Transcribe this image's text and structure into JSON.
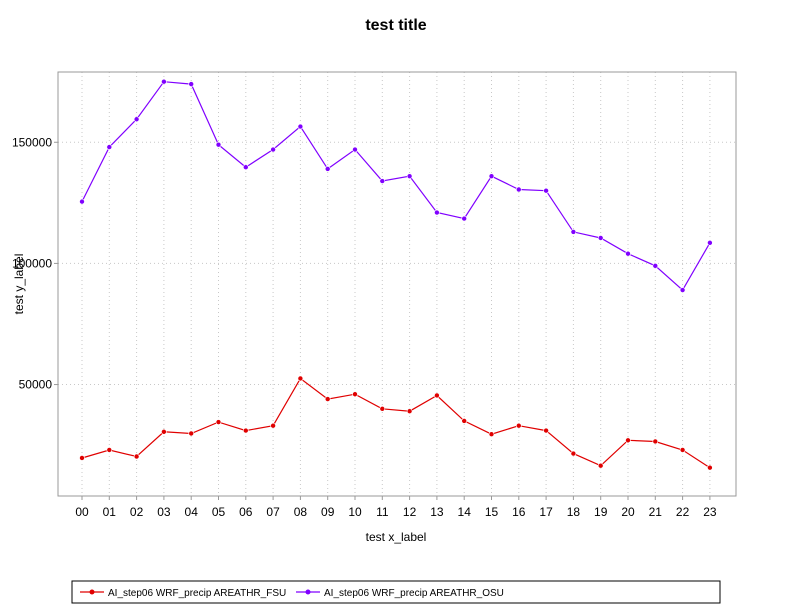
{
  "chart_data": {
    "type": "line",
    "title": "test title",
    "xlabel": "test x_label",
    "ylabel": "test y_label",
    "categories": [
      "00",
      "01",
      "02",
      "03",
      "04",
      "05",
      "06",
      "07",
      "08",
      "09",
      "10",
      "11",
      "12",
      "13",
      "14",
      "15",
      "16",
      "17",
      "18",
      "19",
      "20",
      "21",
      "22",
      "23"
    ],
    "ylim": [
      4000,
      179000
    ],
    "yticks": [
      50000,
      100000,
      150000
    ],
    "ytick_labels": [
      "50000",
      "100000",
      "150000"
    ],
    "grid": true,
    "legend_position": "bottom",
    "series": [
      {
        "name": "AI_step06 WRF_precip AREATHR_FSU",
        "color": "#e00000",
        "values": [
          19700,
          23000,
          20300,
          30500,
          29800,
          34500,
          31000,
          33000,
          52500,
          44000,
          46000,
          40000,
          39000,
          45500,
          35000,
          29500,
          33000,
          31000,
          21500,
          16500,
          27000,
          26500,
          23000,
          15700
        ]
      },
      {
        "name": "AI_step06 WRF_precip AREATHR_OSU",
        "color": "#8000ff",
        "values": [
          125500,
          148000,
          159500,
          175000,
          174000,
          149000,
          139700,
          147000,
          156500,
          139000,
          147000,
          134000,
          136000,
          121000,
          118500,
          136000,
          130500,
          130000,
          113000,
          110500,
          104000,
          99000,
          89000,
          108500
        ]
      }
    ]
  }
}
